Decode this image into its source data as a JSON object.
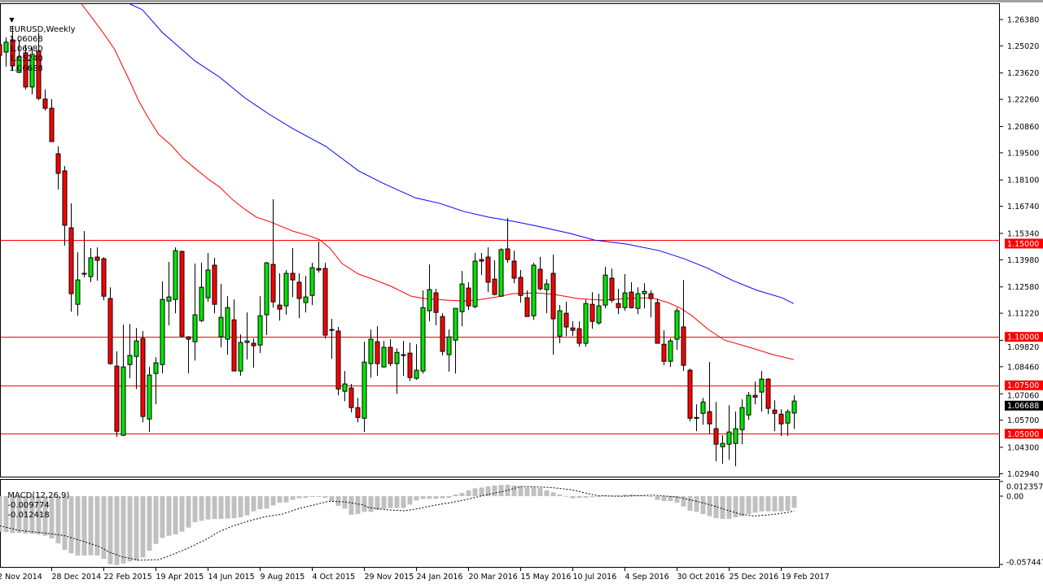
{
  "header": {
    "dropdown_glyph": "▼",
    "symbol": "EURUSD,Weekly",
    "open": "1.06068",
    "high": "1.06980",
    "low": "1.05240",
    "close": "1.06688"
  },
  "macd_header": {
    "label": "MACD(12,26,9)",
    "macd": "-0.009774",
    "signal": "-0.012418"
  },
  "colors": {
    "bull": "#00e600",
    "bear": "#ff0000",
    "ma_fast": "#ff0000",
    "ma_slow": "#0000ff",
    "level": "#ff0000",
    "hist": "#c0c0c0"
  },
  "price_axis": {
    "min": 1.0294,
    "max": 1.2638,
    "labels": [
      "1.26380",
      "1.25020",
      "1.23620",
      "1.22260",
      "1.20860",
      "1.19500",
      "1.18100",
      "1.16740",
      "1.15340",
      "1.13980",
      "1.12580",
      "1.11220",
      "1.09820",
      "1.08460",
      "1.07060",
      "1.05700",
      "1.04300",
      "1.02940"
    ]
  },
  "levels": [
    {
      "price": 1.15,
      "label": "1.15000"
    },
    {
      "price": 1.1,
      "label": "1.10000"
    },
    {
      "price": 1.075,
      "label": "1.07500"
    },
    {
      "price": 1.05,
      "label": "1.05000"
    }
  ],
  "last_price": {
    "price": 1.06688,
    "label": "1.06688"
  },
  "macd_axis": {
    "max": 0.012357,
    "min": -0.057447,
    "labels": [
      {
        "v": 0.012357,
        "t": "0.012357"
      },
      {
        "v": 0,
        "t": "0.00"
      },
      {
        "v": -0.057447,
        "t": "-0.057447"
      }
    ]
  },
  "time_axis": [
    {
      "i": 0,
      "t": "2 Nov 2014"
    },
    {
      "i": 8,
      "t": "28 Dec 2014"
    },
    {
      "i": 16,
      "t": "22 Feb 2015"
    },
    {
      "i": 24,
      "t": "19 Apr 2015"
    },
    {
      "i": 32,
      "t": "14 Jun 2015"
    },
    {
      "i": 40,
      "t": "9 Aug 2015"
    },
    {
      "i": 48,
      "t": "4 Oct 2015"
    },
    {
      "i": 56,
      "t": "29 Nov 2015"
    },
    {
      "i": 64,
      "t": "24 Jan 2016"
    },
    {
      "i": 72,
      "t": "20 Mar 2016"
    },
    {
      "i": 80,
      "t": "15 May 2016"
    },
    {
      "i": 88,
      "t": "10 Jul 2016"
    },
    {
      "i": 96,
      "t": "4 Sep 2016"
    },
    {
      "i": 104,
      "t": "30 Oct 2016"
    },
    {
      "i": 112,
      "t": "25 Dec 2016"
    },
    {
      "i": 120,
      "t": "19 Feb 2017"
    }
  ],
  "chart_data": {
    "type": "candlestick",
    "title": "EURUSD,Weekly",
    "ohlc": [
      [
        1.2508,
        1.2521,
        1.2445,
        1.2453
      ],
      [
        1.247,
        1.2546,
        1.2395,
        1.2521
      ],
      [
        1.2533,
        1.26,
        1.2374,
        1.2399
      ],
      [
        1.2365,
        1.2533,
        1.2362,
        1.2445
      ],
      [
        1.2466,
        1.2508,
        1.2277,
        1.229
      ],
      [
        1.229,
        1.2495,
        1.2252,
        1.2458
      ],
      [
        1.2474,
        1.2571,
        1.2222,
        1.2231
      ],
      [
        1.2227,
        1.2277,
        1.2168,
        1.218
      ],
      [
        1.218,
        1.2227,
        1.2008,
        1.2008
      ],
      [
        1.1945,
        1.1983,
        1.176,
        1.1844
      ],
      [
        1.1857,
        1.1882,
        1.1471,
        1.1576
      ],
      [
        1.1563,
        1.1689,
        1.113,
        1.1223
      ],
      [
        1.1168,
        1.1437,
        1.1109,
        1.1294
      ],
      [
        1.1328,
        1.1546,
        1.1307,
        1.1324
      ],
      [
        1.1311,
        1.1458,
        1.1282,
        1.1408
      ],
      [
        1.1412,
        1.1462,
        1.129,
        1.1395
      ],
      [
        1.1403,
        1.1412,
        1.1189,
        1.121
      ],
      [
        1.1198,
        1.1256,
        1.0857,
        1.0862
      ],
      [
        1.0849,
        1.0925,
        1.0484,
        1.0513
      ],
      [
        1.0492,
        1.1063,
        1.0488,
        1.0845
      ],
      [
        1.0857,
        1.1067,
        1.0786,
        1.0904
      ],
      [
        1.0899,
        1.1046,
        1.0731,
        1.0979
      ],
      [
        1.0992,
        1.103,
        1.0559,
        1.0589
      ],
      [
        1.0576,
        1.0845,
        1.0509,
        1.0803
      ],
      [
        1.0811,
        1.0895,
        1.0652,
        1.0866
      ],
      [
        1.0857,
        1.1286,
        1.0811,
        1.1193
      ],
      [
        1.1185,
        1.1387,
        1.1059,
        1.1206
      ],
      [
        1.1193,
        1.1462,
        1.1122,
        1.1445
      ],
      [
        1.1441,
        1.1445,
        1.0996,
        1.1004
      ],
      [
        1.1,
        1.1004,
        1.0811,
        1.0988
      ],
      [
        1.0975,
        1.1378,
        1.0878,
        1.1114
      ],
      [
        1.1084,
        1.1382,
        1.1076,
        1.1256
      ],
      [
        1.1202,
        1.1433,
        1.1181,
        1.1345
      ],
      [
        1.137,
        1.1408,
        1.1122,
        1.1168
      ],
      [
        1.1,
        1.1273,
        1.0946,
        1.1101
      ],
      [
        1.0988,
        1.121,
        1.0908,
        1.1151
      ],
      [
        1.1088,
        1.1193,
        1.0824,
        1.0824
      ],
      [
        1.0824,
        1.1013,
        1.0799,
        1.0971
      ],
      [
        1.0971,
        1.1126,
        1.0883,
        1.0979
      ],
      [
        1.0967,
        1.0992,
        1.0841,
        1.0954
      ],
      [
        1.0958,
        1.121,
        1.0916,
        1.1109
      ],
      [
        1.1114,
        1.1387,
        1.1009,
        1.1382
      ],
      [
        1.1374,
        1.171,
        1.1151,
        1.1181
      ],
      [
        1.1164,
        1.1328,
        1.1084,
        1.1143
      ],
      [
        1.116,
        1.1345,
        1.1114,
        1.1328
      ],
      [
        1.1328,
        1.1458,
        1.1206,
        1.1294
      ],
      [
        1.1282,
        1.1328,
        1.1097,
        1.1198
      ],
      [
        1.1177,
        1.1315,
        1.1126,
        1.1206
      ],
      [
        1.1214,
        1.1382,
        1.1164,
        1.1357
      ],
      [
        1.1353,
        1.1492,
        1.1332,
        1.1345
      ],
      [
        1.1353,
        1.1382,
        1.0992,
        1.1009
      ],
      [
        1.1038,
        1.1093,
        1.0887,
        1.1034
      ],
      [
        1.103,
        1.1051,
        1.0698,
        1.0731
      ],
      [
        1.0719,
        1.0824,
        1.0668,
        1.0757
      ],
      [
        1.0736,
        1.0757,
        1.061,
        1.0635
      ],
      [
        1.0635,
        1.0685,
        1.0559,
        1.0584
      ],
      [
        1.058,
        1.0975,
        1.0509,
        1.087
      ],
      [
        1.0862,
        1.1038,
        1.079,
        1.0988
      ],
      [
        1.0975,
        1.1055,
        1.0799,
        1.0862
      ],
      [
        1.0845,
        1.0979,
        1.0841,
        1.0946
      ],
      [
        1.0946,
        1.0988,
        1.0849,
        1.0862
      ],
      [
        1.0862,
        1.0941,
        1.0706,
        1.092
      ],
      [
        1.0908,
        1.0979,
        1.0799,
        1.0904
      ],
      [
        1.0916,
        1.0971,
        1.0773,
        1.079
      ],
      [
        1.0786,
        1.0962,
        1.0778,
        1.0828
      ],
      [
        1.0824,
        1.124,
        1.0811,
        1.1151
      ],
      [
        1.1135,
        1.1374,
        1.108,
        1.1244
      ],
      [
        1.1227,
        1.1248,
        1.1059,
        1.1126
      ],
      [
        1.1105,
        1.1122,
        1.0904,
        1.0925
      ],
      [
        1.0908,
        1.1038,
        1.082,
        1.1
      ],
      [
        1.0983,
        1.1147,
        1.0811,
        1.1147
      ],
      [
        1.113,
        1.134,
        1.1055,
        1.1273
      ],
      [
        1.1252,
        1.1282,
        1.1139,
        1.116
      ],
      [
        1.1156,
        1.1433,
        1.1147,
        1.1391
      ],
      [
        1.1399,
        1.1433,
        1.1319,
        1.1391
      ],
      [
        1.1412,
        1.1462,
        1.1231,
        1.1282
      ],
      [
        1.1298,
        1.1395,
        1.1214,
        1.1219
      ],
      [
        1.121,
        1.1458,
        1.1206,
        1.145
      ],
      [
        1.1454,
        1.1613,
        1.1382,
        1.1399
      ],
      [
        1.1391,
        1.1445,
        1.1277,
        1.1303
      ],
      [
        1.1307,
        1.1345,
        1.1177,
        1.1214
      ],
      [
        1.1202,
        1.124,
        1.1105,
        1.1105
      ],
      [
        1.1109,
        1.1382,
        1.1088,
        1.137
      ],
      [
        1.1349,
        1.1412,
        1.124,
        1.1248
      ],
      [
        1.1244,
        1.1298,
        1.1122,
        1.1273
      ],
      [
        1.1328,
        1.1424,
        1.0908,
        1.1093
      ],
      [
        1.1004,
        1.1164,
        1.0967,
        1.1135
      ],
      [
        1.1122,
        1.1181,
        1.1004,
        1.1051
      ],
      [
        1.1046,
        1.108,
        1.1004,
        1.1034
      ],
      [
        1.1042,
        1.108,
        1.095,
        1.0967
      ],
      [
        1.0967,
        1.1193,
        1.095,
        1.1172
      ],
      [
        1.1168,
        1.1231,
        1.1042,
        1.108
      ],
      [
        1.1072,
        1.1223,
        1.1063,
        1.116
      ],
      [
        1.1164,
        1.1361,
        1.1147,
        1.1319
      ],
      [
        1.1303,
        1.1353,
        1.1177,
        1.1189
      ],
      [
        1.1172,
        1.1248,
        1.1118,
        1.1151
      ],
      [
        1.1151,
        1.1324,
        1.1135,
        1.1227
      ],
      [
        1.1231,
        1.1282,
        1.1147,
        1.1151
      ],
      [
        1.1147,
        1.1256,
        1.1118,
        1.1223
      ],
      [
        1.1223,
        1.1277,
        1.1147,
        1.1235
      ],
      [
        1.1223,
        1.124,
        1.1101,
        1.1198
      ],
      [
        1.1177,
        1.1198,
        1.0967,
        1.0967
      ],
      [
        1.0962,
        1.1034,
        1.0853,
        1.0874
      ],
      [
        1.0874,
        1.0992,
        1.0845,
        1.0979
      ],
      [
        1.0988,
        1.1151,
        1.0933,
        1.1135
      ],
      [
        1.1051,
        1.1294,
        1.0824,
        1.0853
      ],
      [
        1.0828,
        1.0836,
        1.0563,
        1.058
      ],
      [
        1.0584,
        1.0652,
        1.0513,
        1.058
      ],
      [
        1.0605,
        1.0685,
        1.0547,
        1.0664
      ],
      [
        1.0614,
        1.087,
        1.05,
        1.0551
      ],
      [
        1.0526,
        1.0664,
        1.0358,
        1.0446
      ],
      [
        1.0433,
        1.0492,
        1.0345,
        1.045
      ],
      [
        1.0446,
        1.0647,
        1.0366,
        1.0509
      ],
      [
        1.045,
        1.0614,
        1.0332,
        1.0526
      ],
      [
        1.0521,
        1.0677,
        1.0446,
        1.0635
      ],
      [
        1.0597,
        1.0715,
        1.0572,
        1.0698
      ],
      [
        1.0698,
        1.0769,
        1.0652,
        1.0689
      ],
      [
        1.0715,
        1.0824,
        1.0614,
        1.0782
      ],
      [
        1.0782,
        1.0786,
        1.0601,
        1.0631
      ],
      [
        1.0622,
        1.0673,
        1.0513,
        1.0605
      ],
      [
        1.0601,
        1.0626,
        1.0488,
        1.0551
      ],
      [
        1.0555,
        1.0626,
        1.0488,
        1.0614
      ],
      [
        1.06068,
        1.0698,
        1.0524,
        1.06688
      ]
    ],
    "ma_fast": [
      [
        12.6,
        1.2731
      ],
      [
        14,
        1.2655
      ],
      [
        15.7,
        1.2579
      ],
      [
        17.6,
        1.2487
      ],
      [
        18.8,
        1.2403
      ],
      [
        20,
        1.2319
      ],
      [
        21.3,
        1.2222
      ],
      [
        22.6,
        1.2143
      ],
      [
        24.4,
        1.2046
      ],
      [
        26.3,
        1.1991
      ],
      [
        28.2,
        1.192
      ],
      [
        30,
        1.187
      ],
      [
        32,
        1.1815
      ],
      [
        33.8,
        1.1773
      ],
      [
        35.7,
        1.171
      ],
      [
        37.6,
        1.166
      ],
      [
        39.4,
        1.1618
      ],
      [
        41.3,
        1.1597
      ],
      [
        43.2,
        1.1571
      ],
      [
        45,
        1.1546
      ],
      [
        47.6,
        1.1521
      ],
      [
        49.2,
        1.15
      ],
      [
        50.7,
        1.1458
      ],
      [
        52.6,
        1.1378
      ],
      [
        55.1,
        1.1324
      ],
      [
        57.6,
        1.1294
      ],
      [
        60.1,
        1.1261
      ],
      [
        63.2,
        1.121
      ],
      [
        65.1,
        1.1198
      ],
      [
        68.8,
        1.1189
      ],
      [
        71.3,
        1.1185
      ],
      [
        73.8,
        1.1193
      ],
      [
        76.3,
        1.1206
      ],
      [
        78.8,
        1.1223
      ],
      [
        82.6,
        1.1227
      ],
      [
        85.1,
        1.1219
      ],
      [
        88.8,
        1.1198
      ],
      [
        92.6,
        1.1189
      ],
      [
        96.3,
        1.1198
      ],
      [
        100.1,
        1.1202
      ],
      [
        102.6,
        1.1177
      ],
      [
        104.4,
        1.1151
      ],
      [
        106.3,
        1.1109
      ],
      [
        108.8,
        1.1038
      ],
      [
        111.3,
        1.0983
      ],
      [
        115.1,
        1.0946
      ],
      [
        118.8,
        1.0908
      ],
      [
        121.9,
        1.0883
      ]
    ],
    "ma_slow": [
      [
        20,
        1.2739
      ],
      [
        21.9,
        1.2689
      ],
      [
        25,
        1.2571
      ],
      [
        30,
        1.2424
      ],
      [
        33.8,
        1.234
      ],
      [
        37.6,
        1.2235
      ],
      [
        41.3,
        1.2151
      ],
      [
        45,
        1.2075
      ],
      [
        50.1,
        1.1983
      ],
      [
        55.1,
        1.1857
      ],
      [
        58.8,
        1.1794
      ],
      [
        63.8,
        1.1718
      ],
      [
        67.6,
        1.1689
      ],
      [
        71.3,
        1.1647
      ],
      [
        75.1,
        1.1618
      ],
      [
        78.8,
        1.1597
      ],
      [
        82.6,
        1.1571
      ],
      [
        87.6,
        1.1534
      ],
      [
        91.3,
        1.15
      ],
      [
        96.3,
        1.1479
      ],
      [
        101.3,
        1.1445
      ],
      [
        105.1,
        1.1403
      ],
      [
        108.8,
        1.1353
      ],
      [
        112.6,
        1.129
      ],
      [
        116.3,
        1.124
      ],
      [
        120.1,
        1.1202
      ],
      [
        121.9,
        1.1172
      ]
    ],
    "macd_hist": [
      -0.0299,
      -0.0303,
      -0.031,
      -0.031,
      -0.0315,
      -0.0317,
      -0.0322,
      -0.0333,
      -0.0356,
      -0.0397,
      -0.0452,
      -0.0481,
      -0.05,
      -0.05,
      -0.0497,
      -0.05,
      -0.0527,
      -0.0573,
      -0.058,
      -0.0566,
      -0.055,
      -0.0543,
      -0.0516,
      -0.0459,
      -0.0402,
      -0.0351,
      -0.0333,
      -0.0322,
      -0.0299,
      -0.0265,
      -0.0219,
      -0.0208,
      -0.0196,
      -0.0192,
      -0.0192,
      -0.0189,
      -0.0185,
      -0.0178,
      -0.0162,
      -0.0128,
      -0.011,
      -0.0105,
      -0.0078,
      -0.0055,
      -0.0052,
      -0.0032,
      -0.0018,
      -0.0014,
      -0.0005,
      -0.0002,
      -0.0014,
      -0.0041,
      -0.0082,
      -0.0105,
      -0.0157,
      -0.0151,
      -0.0132,
      -0.0132,
      -0.0116,
      -0.0105,
      -0.01,
      -0.01,
      -0.01,
      -0.0071,
      -0.0037,
      -0.0023,
      -0.0023,
      -0.0023,
      -0.0018,
      -0.0014,
      0.0014,
      0.0027,
      0.005,
      0.0066,
      0.0073,
      0.0082,
      0.0089,
      0.0094,
      0.0096,
      0.0089,
      0.0082,
      0.0073,
      0.0073,
      0.0068,
      0.005,
      0.0032,
      0.0014,
      0.0002,
      -0.0018,
      -0.0014,
      -0.0014,
      -0.0009,
      -0.0002,
      0.0005,
      0.0005,
      0.0009,
      0.0014,
      0.0014,
      0.0009,
      0.0005,
      0.0,
      -0.0032,
      -0.0041,
      -0.0041,
      -0.0055,
      -0.0087,
      -0.0123,
      -0.0132,
      -0.0151,
      -0.0169,
      -0.0185,
      -0.0192,
      -0.0192,
      -0.0178,
      -0.0169,
      -0.0151,
      -0.0139,
      -0.0128,
      -0.0128,
      -0.0128,
      -0.0128,
      -0.0123,
      -0.009774
    ],
    "macd_signal": [
      [
        0,
        -0.0249
      ],
      [
        3,
        -0.0288
      ],
      [
        7.7,
        -0.0315
      ],
      [
        10,
        -0.0333
      ],
      [
        12.8,
        -0.0379
      ],
      [
        15.3,
        -0.0424
      ],
      [
        16.8,
        -0.047
      ],
      [
        18.9,
        -0.0511
      ],
      [
        21.4,
        -0.0539
      ],
      [
        24.5,
        -0.0534
      ],
      [
        26.5,
        -0.0493
      ],
      [
        29,
        -0.0436
      ],
      [
        31.6,
        -0.0367
      ],
      [
        33.7,
        -0.0299
      ],
      [
        35.7,
        -0.0253
      ],
      [
        38.3,
        -0.0208
      ],
      [
        40.8,
        -0.0173
      ],
      [
        43.4,
        -0.0151
      ],
      [
        45.9,
        -0.0105
      ],
      [
        48.5,
        -0.0071
      ],
      [
        50.5,
        -0.0043
      ],
      [
        53,
        -0.0048
      ],
      [
        55.6,
        -0.0071
      ],
      [
        56.6,
        -0.0094
      ],
      [
        59.7,
        -0.0116
      ],
      [
        62.2,
        -0.0123
      ],
      [
        64.3,
        -0.0105
      ],
      [
        66.8,
        -0.0076
      ],
      [
        69.4,
        -0.0053
      ],
      [
        71.4,
        -0.0032
      ],
      [
        74.5,
        0.0009
      ],
      [
        77.6,
        0.0043
      ],
      [
        80,
        0.0082
      ],
      [
        84.6,
        0.0073
      ],
      [
        87.7,
        0.0055
      ],
      [
        91.7,
        0.0005
      ],
      [
        95.3,
        -0.0002
      ],
      [
        100.4,
        0.0009
      ],
      [
        104,
        -0.0007
      ],
      [
        106.5,
        -0.0037
      ],
      [
        109,
        -0.0071
      ],
      [
        111.6,
        -0.0116
      ],
      [
        113.7,
        -0.0151
      ],
      [
        115.7,
        -0.0167
      ],
      [
        118.3,
        -0.0157
      ],
      [
        120.8,
        -0.0139
      ],
      [
        122,
        -0.012418
      ]
    ]
  }
}
